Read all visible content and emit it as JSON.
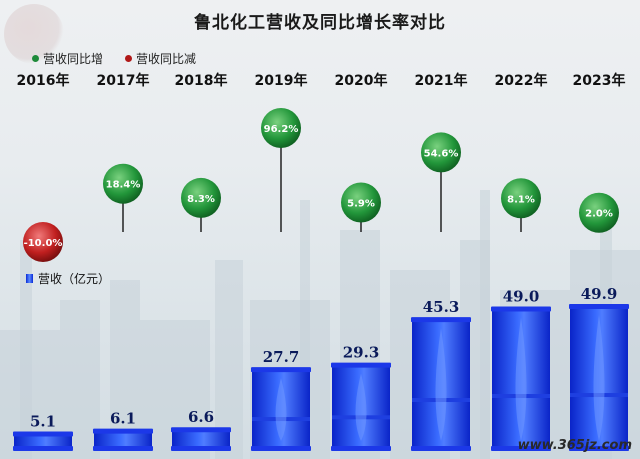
{
  "title": "鲁北化工营收及同比增长率对比",
  "legend": {
    "increase_label": "营收同比增",
    "decrease_label": "营收同比减",
    "revenue_label": "营收（亿元）",
    "increase_color": "#1e8a3a",
    "decrease_color": "#b01818",
    "bar_color": "#1433e0"
  },
  "watermark": "www.365jz.com",
  "chart_data": {
    "type": "bar",
    "categories": [
      "2016年",
      "2017年",
      "2018年",
      "2019年",
      "2020年",
      "2021年",
      "2022年",
      "2023年"
    ],
    "series": [
      {
        "name": "营收（亿元）",
        "values": [
          5.1,
          6.1,
          6.6,
          27.7,
          29.3,
          45.3,
          49.0,
          49.9
        ]
      },
      {
        "name": "营收同比",
        "values": [
          -10.0,
          18.4,
          8.3,
          96.2,
          5.9,
          54.6,
          8.1,
          2.0
        ]
      }
    ],
    "revenue_labels": [
      "5.1",
      "6.1",
      "6.6",
      "27.7",
      "29.3",
      "45.3",
      "49.0",
      "49.9"
    ],
    "growth_labels": [
      "-10.0%",
      "18.4%",
      "8.3%",
      "96.2%",
      "5.9%",
      "54.6%",
      "8.1%",
      "2.0%"
    ],
    "ylabel": "营收（亿元）",
    "legend_position": "top-left"
  }
}
